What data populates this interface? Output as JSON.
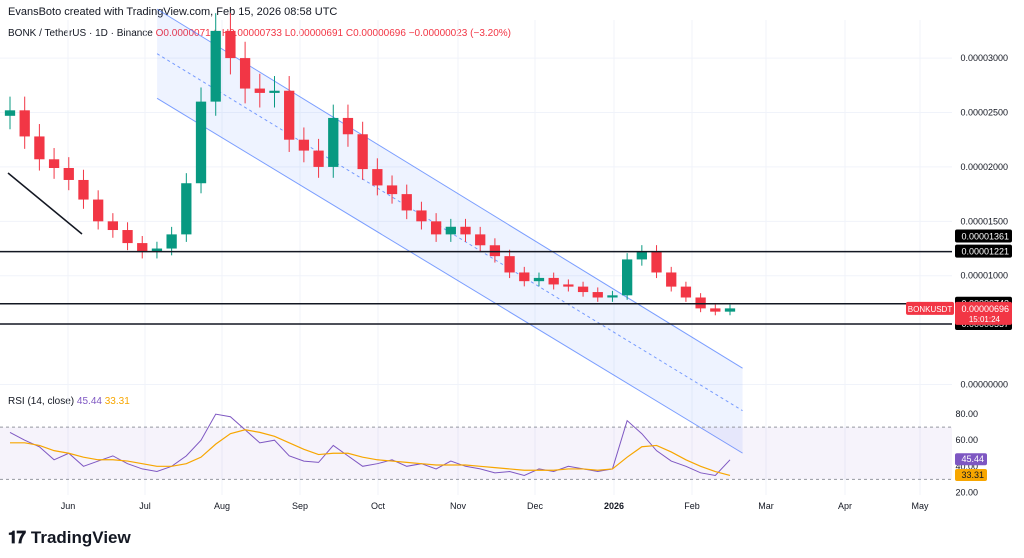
{
  "header": {
    "text": "EvansBoto created with TradingView.com, Feb 15, 2026 08:58 UTC"
  },
  "legend": {
    "symbol": "BONK / TetherUS · 1D · Binance",
    "ohlc": "O0.0000071∗ H0.00000733 L0.00000691 C0.00000696 −0.00000023 (−3.20%)"
  },
  "rsi_legend": {
    "label": "RSI (14, close)",
    "rsi": "45.44",
    "ma": "33.31"
  },
  "footer": {
    "brand": "TradingView",
    "logo": "tradingview-logo-icon"
  },
  "colors": {
    "up": "#089981",
    "down": "#f23645",
    "channel": "#2962ff",
    "rsi": "#7e57c2",
    "rsi_ma": "#f7a600",
    "level": "#131722"
  },
  "chart_data": [
    {
      "type": "candlestick",
      "title": "BONK / TetherUS · 1D · Binance",
      "x_ticks": [
        "Jun",
        "Jul",
        "Aug",
        "Sep",
        "Oct",
        "Nov",
        "Dec",
        "2026",
        "Feb",
        "Mar",
        "Apr",
        "May"
      ],
      "y_ticks": [
        "0.00003000",
        "0.00002500",
        "0.00002000",
        "0.00001500",
        "0.00001000",
        "0.00000000"
      ],
      "ylim": [
        -5e-07,
        3.35e-05
      ],
      "price_labels": [
        {
          "value": 1.361e-05,
          "text": "0.00001361"
        },
        {
          "value": 1.221e-05,
          "text": "0.00001221"
        },
        {
          "value": 7.43e-06,
          "text": "0.00000743"
        },
        {
          "value": 5.57e-06,
          "text": "0.00000557"
        }
      ],
      "horizontal_levels": [
        1.221e-05,
        7.43e-06,
        5.57e-06
      ],
      "current_price": {
        "symbol": "BONKUSDT",
        "value": "0.00000696",
        "countdown": "15:01:24"
      },
      "close_series": [
        2.52e-05,
        2.28e-05,
        2.07e-05,
        1.99e-05,
        1.88e-05,
        1.7e-05,
        1.5e-05,
        1.42e-05,
        1.3e-05,
        1.22e-05,
        1.25e-05,
        1.38e-05,
        1.85e-05,
        2.6e-05,
        3.25e-05,
        3e-05,
        2.72e-05,
        2.68e-05,
        2.7e-05,
        2.25e-05,
        2.15e-05,
        2e-05,
        2.45e-05,
        2.3e-05,
        1.98e-05,
        1.83e-05,
        1.75e-05,
        1.6e-05,
        1.5e-05,
        1.38e-05,
        1.45e-05,
        1.38e-05,
        1.28e-05,
        1.18e-05,
        1.03e-05,
        9.5e-06,
        9.8e-06,
        9.2e-06,
        9e-06,
        8.5e-06,
        8e-06,
        8.2e-06,
        1.15e-05,
        1.22e-05,
        1.03e-05,
        9e-06,
        8e-06,
        7e-06,
        6.7e-06,
        7e-06
      ],
      "channel": {
        "upper": [
          [
            0.165,
            3.45e-05
          ],
          [
            0.78,
            1.5e-06
          ]
        ],
        "lower": [
          [
            0.165,
            2.63e-05
          ],
          [
            0.78,
            -6.3e-06
          ]
        ]
      }
    },
    {
      "type": "line",
      "title": "RSI (14, close)",
      "y_ticks": [
        "80.00",
        "60.00",
        "40.00",
        "20.00"
      ],
      "ylim": [
        18,
        87
      ],
      "band": [
        30,
        70
      ],
      "current_labels": [
        {
          "value": 45.44,
          "text": "45.44"
        },
        {
          "value": 33.31,
          "text": "33.31"
        }
      ],
      "series": [
        {
          "values": [
            66,
            60,
            55,
            45,
            50,
            40,
            44,
            48,
            42,
            38,
            36,
            40,
            48,
            60,
            80,
            78,
            68,
            58,
            60,
            48,
            44,
            43,
            56,
            48,
            40,
            42,
            45,
            40,
            42,
            38,
            44,
            40,
            38,
            35,
            36,
            33,
            38,
            36,
            40,
            38,
            36,
            38,
            75,
            65,
            52,
            44,
            40,
            35,
            33,
            45
          ]
        },
        {
          "values": [
            58,
            58,
            56,
            52,
            50,
            47,
            45,
            45,
            44,
            42,
            40,
            40,
            42,
            47,
            57,
            65,
            68,
            66,
            63,
            58,
            53,
            49,
            50,
            50,
            47,
            45,
            44,
            43,
            42,
            41,
            41,
            41,
            40,
            39,
            38,
            37,
            37,
            37,
            38,
            38,
            37,
            38,
            47,
            55,
            56,
            51,
            45,
            40,
            36,
            33
          ]
        }
      ]
    }
  ]
}
